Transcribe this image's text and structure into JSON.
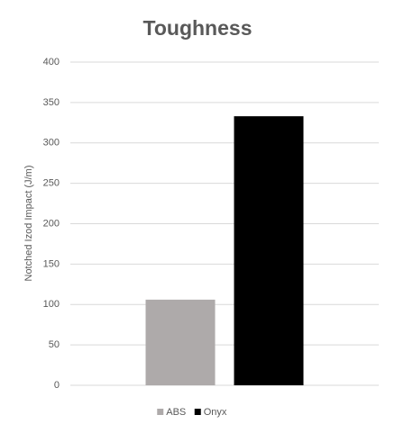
{
  "chart_data": {
    "type": "bar",
    "title": "Toughness",
    "y_label": "Notched Izod Impact (J/m)",
    "categories": [
      null
    ],
    "series": [
      {
        "name": "ABS",
        "color": "#aeaaaa",
        "values": [
          106
        ]
      },
      {
        "name": "Onyx",
        "color": "#000000",
        "values": [
          333
        ]
      }
    ],
    "ylim": [
      0,
      400
    ],
    "yticks": [
      0,
      50,
      100,
      150,
      200,
      250,
      300,
      350,
      400
    ],
    "grid": true,
    "legend": "bottom"
  }
}
